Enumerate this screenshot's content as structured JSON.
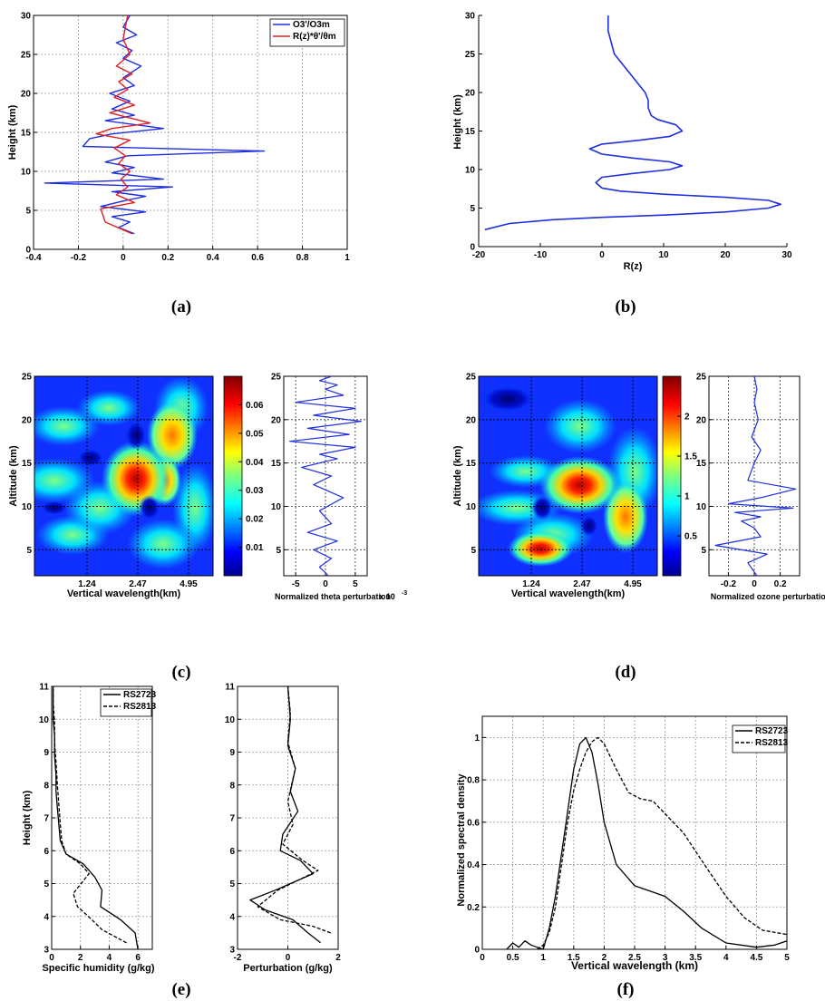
{
  "panel_labels": [
    "(a)",
    "(b)",
    "(c)",
    "(d)",
    "(e)",
    "(f)"
  ],
  "colors": {
    "blue": "#1f2fe0",
    "red": "#e02020",
    "black": "#000000",
    "grid": "#9a9a9a"
  },
  "chart_data": [
    {
      "panel": "a",
      "type": "line",
      "xlabel": "",
      "ylabel": "Height (km)",
      "xlim": [
        -0.4,
        1
      ],
      "ylim": [
        0,
        30
      ],
      "xticks": [
        -0.4,
        -0.2,
        0,
        0.2,
        0.4,
        0.6,
        0.8,
        1
      ],
      "yticks": [
        0,
        5,
        10,
        15,
        20,
        25,
        30
      ],
      "grid": true,
      "legend": "top-right",
      "series": [
        {
          "name": "O3'/O3m",
          "color": "#1f2fe0",
          "x": [
            0.05,
            -0.02,
            0.03,
            -0.05,
            0.1,
            -0.1,
            0.0,
            0.1,
            -0.05,
            0.22,
            -0.35,
            0.18,
            -0.05,
            0.05,
            -0.08,
            0.02,
            0.63,
            -0.18,
            -0.15,
            -0.05,
            0.18,
            -0.08,
            0.05,
            -0.05,
            0.03,
            -0.06,
            0.05,
            0.0,
            0.08,
            0.0,
            0.04,
            -0.03,
            0.06,
            0.0,
            0.03
          ],
          "y": [
            2,
            2.8,
            3.5,
            4.2,
            4.8,
            5.5,
            6.2,
            6.8,
            7.4,
            8.0,
            8.5,
            9.0,
            9.8,
            10.5,
            11.2,
            12.0,
            12.6,
            13.2,
            14.2,
            14.8,
            15.5,
            16.5,
            17.2,
            18.0,
            19.0,
            20.0,
            21.0,
            22.0,
            23.5,
            24.5,
            25.5,
            26.5,
            27.5,
            28.5,
            30
          ]
        },
        {
          "name": "R(z)*θ'/θm",
          "color": "#e02020",
          "x": [
            0.04,
            -0.08,
            -0.1,
            0.05,
            -0.03,
            0.02,
            -0.01,
            0.03,
            -0.02,
            0.01,
            -0.04,
            0.03,
            -0.12,
            -0.05,
            0.12,
            -0.06,
            0.05,
            -0.04,
            0.02,
            -0.02,
            0.04,
            -0.03,
            0.03,
            0.0,
            0.02
          ],
          "y": [
            2,
            3.5,
            5.2,
            6.0,
            7.0,
            8.0,
            9.0,
            10.0,
            11.0,
            12.0,
            13.0,
            14.0,
            14.8,
            15.5,
            16.2,
            17.5,
            18.5,
            19.5,
            20.5,
            21.5,
            22.5,
            23.5,
            25.0,
            27.0,
            30.0
          ]
        }
      ]
    },
    {
      "panel": "b",
      "type": "line",
      "xlabel": "R(z)",
      "ylabel": "Height (km)",
      "xlim": [
        -20,
        30
      ],
      "ylim": [
        0,
        30
      ],
      "xticks": [
        -20,
        -10,
        0,
        10,
        20,
        30
      ],
      "yticks": [
        0,
        5,
        10,
        15,
        20,
        25,
        30
      ],
      "grid": false,
      "series": [
        {
          "name": "",
          "color": "#1f2fe0",
          "x": [
            -19,
            -15,
            -8,
            0,
            10,
            20,
            27,
            29,
            27,
            20,
            10,
            3,
            0,
            -1,
            0,
            5,
            11,
            13,
            11,
            5,
            0,
            -2,
            0,
            6,
            11,
            13,
            12,
            9,
            8,
            7.5,
            7.5,
            7,
            6,
            5,
            4,
            3,
            2,
            1.5,
            1,
            1
          ],
          "y": [
            2.2,
            3.0,
            3.5,
            3.8,
            4.1,
            4.5,
            5.0,
            5.5,
            6.0,
            6.4,
            6.8,
            7.2,
            7.6,
            8.3,
            9.0,
            9.5,
            10.0,
            10.5,
            11.0,
            11.5,
            12.0,
            12.7,
            13.3,
            13.8,
            14.3,
            15.0,
            15.8,
            16.5,
            17.0,
            18.0,
            19.0,
            20.0,
            21.0,
            22.0,
            23.0,
            24.0,
            25.0,
            26.5,
            28.0,
            30.0
          ]
        }
      ]
    },
    {
      "panel": "c",
      "type": "heatmap",
      "xlabel": "Vertical wavelength(km)",
      "ylabel": "Altitude (km)",
      "xticks": [
        1.24,
        2.47,
        4.95
      ],
      "yticks": [
        5,
        10,
        15,
        20,
        25
      ],
      "colorbar_ticks": [
        0.01,
        0.02,
        0.03,
        0.04,
        0.05,
        0.06
      ],
      "hotspots": [
        {
          "x": 2.47,
          "y": 13.2,
          "v": 0.068
        },
        {
          "x": 3.4,
          "y": 19.5,
          "v": 0.05
        },
        {
          "x": 3.3,
          "y": 13.0,
          "v": 0.04
        }
      ],
      "profile": {
        "xlabel": "Normalized theta perturbation",
        "xlabel_suffix": "x 10",
        "xlabel_exponent": "-3",
        "xticks": [
          -5,
          0,
          5
        ],
        "xlim": [
          -7,
          7
        ],
        "yticks": [
          5,
          10,
          15,
          20,
          25
        ],
        "ylim": [
          2,
          25
        ],
        "color": "#1f2fe0",
        "x": [
          0.5,
          -1,
          1,
          -2,
          2,
          -3,
          1,
          -1,
          3,
          -2,
          1,
          -4,
          2,
          -1,
          5,
          -6,
          4,
          -3,
          6,
          -2,
          5,
          -5,
          3,
          0,
          2,
          -1,
          1
        ],
        "y": [
          2,
          3,
          4,
          5,
          6,
          7,
          8,
          9.5,
          11,
          12.5,
          13.5,
          14.5,
          15.5,
          16,
          16.8,
          17.5,
          18.3,
          19,
          19.8,
          20.5,
          21.3,
          22,
          22.8,
          23.5,
          24,
          24.5,
          25
        ]
      }
    },
    {
      "panel": "d",
      "type": "heatmap",
      "xlabel": "Vertical wavelength(km)",
      "ylabel": "Altitude (km)",
      "xticks": [
        1.24,
        2.47,
        4.95
      ],
      "yticks": [
        5,
        10,
        15,
        20,
        25
      ],
      "colorbar_ticks": [
        0.5,
        1,
        1.5,
        2
      ],
      "hotspots": [
        {
          "x": 2.9,
          "y": 12.0,
          "v": 2.4
        },
        {
          "x": 2.0,
          "y": 4.5,
          "v": 2.3
        },
        {
          "x": 3.9,
          "y": 7.5,
          "v": 1.9
        }
      ],
      "profile": {
        "xlabel": "Normalized ozone perturbation",
        "xticks": [
          -0.2,
          0,
          0.2
        ],
        "xlim": [
          -0.35,
          0.35
        ],
        "yticks": [
          5,
          10,
          15,
          20,
          25
        ],
        "ylim": [
          2,
          25
        ],
        "color": "#1f2fe0",
        "x": [
          0.02,
          -0.05,
          0.1,
          -0.3,
          0.05,
          0.0,
          -0.1,
          0.05,
          -0.15,
          0.3,
          -0.2,
          0.05,
          0.32,
          -0.05,
          0.0,
          0.05,
          -0.02,
          0.03,
          0.0,
          0.02,
          0.0
        ],
        "y": [
          2,
          3.5,
          4.5,
          5.5,
          6.5,
          7.5,
          8.3,
          8.8,
          9.3,
          9.8,
          10.3,
          11.0,
          12.0,
          13.0,
          15.0,
          16.5,
          18.0,
          20.0,
          22.0,
          23.5,
          25
        ]
      }
    },
    {
      "panel": "e1",
      "type": "line",
      "xlabel": "Specific humidity (g/kg)",
      "ylabel": "Height (km)",
      "xlim": [
        0,
        7
      ],
      "ylim": [
        3,
        11
      ],
      "xticks": [
        0,
        2,
        4,
        6
      ],
      "yticks": [
        3,
        4,
        5,
        6,
        7,
        8,
        9,
        10,
        11
      ],
      "grid": true,
      "legend": "top-right",
      "series": [
        {
          "name": "RS2723",
          "style": "solid",
          "x": [
            6.0,
            5.8,
            4.8,
            3.4,
            3.5,
            3.0,
            2.2,
            1.0,
            0.6,
            0.5,
            0.4,
            0.3,
            0.3,
            0.2,
            0.2,
            0.1,
            0.1,
            0.1
          ],
          "y": [
            3.0,
            3.5,
            3.9,
            4.3,
            4.8,
            5.2,
            5.6,
            5.9,
            6.3,
            6.8,
            7.3,
            7.8,
            8.3,
            8.9,
            9.5,
            10.0,
            10.5,
            11.0
          ]
        },
        {
          "name": "RS2813",
          "style": "dashed",
          "x": [
            5.2,
            3.5,
            2.8,
            1.8,
            1.5,
            2.6,
            2.0,
            1.0,
            0.7,
            0.6,
            0.5,
            0.4,
            0.3,
            0.2,
            0.2,
            0.1,
            0.1
          ],
          "y": [
            3.2,
            3.6,
            3.9,
            4.3,
            4.7,
            5.3,
            5.6,
            5.9,
            6.3,
            6.8,
            7.4,
            8.0,
            8.7,
            9.3,
            9.9,
            10.5,
            11.0
          ]
        }
      ]
    },
    {
      "panel": "e2",
      "type": "line",
      "xlabel": "Perturbation (g/kg)",
      "ylabel": "",
      "xlim": [
        -2,
        2
      ],
      "ylim": [
        3,
        11
      ],
      "xticks": [
        -2,
        0,
        2
      ],
      "yticks": [
        3,
        4,
        5,
        6,
        7,
        8,
        9,
        10,
        11
      ],
      "grid": true,
      "series": [
        {
          "name": "RS2723",
          "style": "solid",
          "x": [
            1.3,
            0.8,
            0.2,
            -0.9,
            -1.5,
            -0.5,
            1.0,
            0.5,
            -0.3,
            -0.2,
            0.4,
            0.1,
            0.3,
            0.0,
            0.1,
            0.0
          ],
          "y": [
            3.2,
            3.5,
            3.9,
            4.2,
            4.5,
            4.8,
            5.3,
            5.7,
            6.0,
            6.5,
            7.2,
            7.8,
            8.5,
            9.2,
            10.0,
            11.0
          ]
        },
        {
          "name": "RS2813",
          "style": "dashed",
          "x": [
            1.7,
            1.0,
            -0.3,
            -1.2,
            -0.4,
            1.2,
            0.6,
            -0.2,
            0.2,
            0.0,
            0.3,
            0.0,
            0.1,
            0.0
          ],
          "y": [
            3.5,
            3.7,
            3.9,
            4.3,
            4.8,
            5.4,
            5.7,
            6.2,
            6.8,
            7.5,
            8.5,
            9.3,
            10.2,
            11.0
          ]
        }
      ]
    },
    {
      "panel": "f",
      "type": "line",
      "xlabel": "Vertical wavelength (km)",
      "ylabel": "Normalized spectral density",
      "xlim": [
        0,
        5
      ],
      "ylim": [
        0,
        1.1
      ],
      "xticks": [
        0,
        0.5,
        1,
        1.5,
        2,
        2.5,
        3,
        3.5,
        4,
        4.5,
        5
      ],
      "yticks": [
        0,
        0.2,
        0.4,
        0.6,
        0.8,
        1
      ],
      "grid": true,
      "legend": "top-right",
      "series": [
        {
          "name": "RS2723",
          "style": "solid",
          "x": [
            0.4,
            0.5,
            0.6,
            0.7,
            0.8,
            0.9,
            1.0,
            1.1,
            1.2,
            1.3,
            1.4,
            1.5,
            1.6,
            1.7,
            1.8,
            1.9,
            2.0,
            2.2,
            2.5,
            2.8,
            3.0,
            3.3,
            3.6,
            4.0,
            4.5,
            4.8,
            5.0
          ],
          "y": [
            0.0,
            0.03,
            0.01,
            0.04,
            0.02,
            0.01,
            0.0,
            0.1,
            0.25,
            0.45,
            0.65,
            0.85,
            0.97,
            1.0,
            0.93,
            0.78,
            0.6,
            0.4,
            0.3,
            0.27,
            0.25,
            0.18,
            0.1,
            0.03,
            0.01,
            0.02,
            0.04
          ]
        },
        {
          "name": "RS2813",
          "style": "dashed",
          "x": [
            0.9,
            1.0,
            1.1,
            1.2,
            1.3,
            1.4,
            1.5,
            1.6,
            1.7,
            1.8,
            1.9,
            2.0,
            2.2,
            2.4,
            2.6,
            2.8,
            3.0,
            3.3,
            3.6,
            4.0,
            4.3,
            4.6,
            5.0
          ],
          "y": [
            0.0,
            0.02,
            0.08,
            0.2,
            0.4,
            0.6,
            0.75,
            0.85,
            0.93,
            0.98,
            1.0,
            0.97,
            0.85,
            0.74,
            0.71,
            0.7,
            0.64,
            0.55,
            0.42,
            0.25,
            0.15,
            0.09,
            0.07
          ]
        }
      ]
    }
  ]
}
